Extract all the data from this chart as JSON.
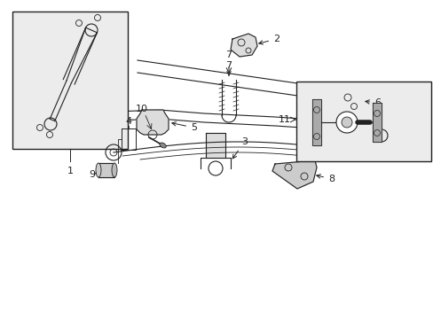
{
  "bg_color": "#ffffff",
  "line_color": "#222222",
  "box_bg": "#ececec",
  "fig_width": 4.89,
  "fig_height": 3.6,
  "dpi": 100,
  "lw": 0.8,
  "lw_thick": 1.2
}
